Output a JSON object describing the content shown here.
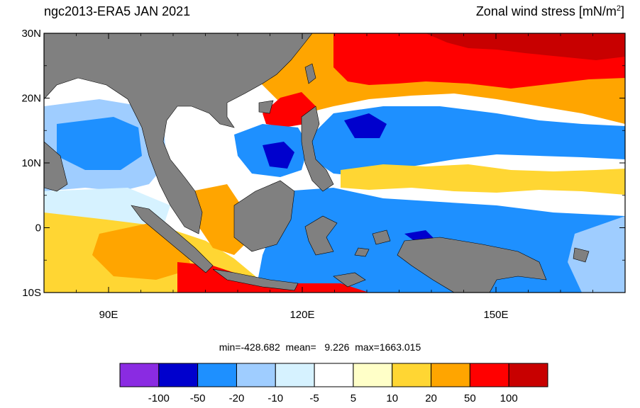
{
  "header": {
    "title_left": "ngc2013-ERA5  JAN 2021",
    "title_right_main": "Zonal wind stress [mN/m",
    "title_right_sup": "2",
    "title_right_close": "]"
  },
  "map": {
    "region": "Maritime Continent / Western Pacific",
    "lon_range": [
      80,
      170
    ],
    "lat_range": [
      -10,
      30
    ],
    "lat_ticks": [
      {
        "value": 30,
        "label": "30N"
      },
      {
        "value": 20,
        "label": "20N"
      },
      {
        "value": 10,
        "label": "10N"
      },
      {
        "value": 0,
        "label": "0"
      },
      {
        "value": -10,
        "label": "10S"
      }
    ],
    "lon_ticks": [
      {
        "value": 90,
        "label": "90E"
      },
      {
        "value": 120,
        "label": "120E"
      },
      {
        "value": 150,
        "label": "150E"
      }
    ],
    "land_color": "#808080"
  },
  "stats": {
    "text": "min=-428.682  mean=   9.226  max=1663.015"
  },
  "colorbar": {
    "colors": [
      "#8a2be2",
      "#0000cd",
      "#1e90ff",
      "#9fcdff",
      "#d6f2ff",
      "#ffffff",
      "#ffffc8",
      "#ffd633",
      "#ffa500",
      "#ff0000",
      "#c80000"
    ],
    "labels": [
      "-100",
      "-50",
      "-20",
      "-10",
      "-5",
      "5",
      "10",
      "20",
      "50",
      "100"
    ]
  }
}
